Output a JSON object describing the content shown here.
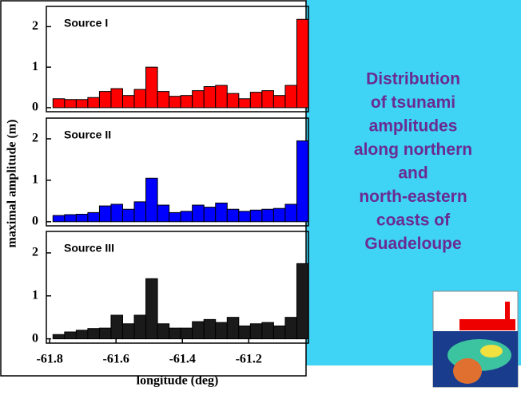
{
  "chart_data": [
    {
      "type": "histogram",
      "title": "Source I",
      "color": "#ff0000",
      "bins": [
        -61.79,
        -61.755,
        -61.72,
        -61.685,
        -61.65,
        -61.615,
        -61.58,
        -61.545,
        -61.51,
        -61.475,
        -61.44,
        -61.405,
        -61.37,
        -61.335,
        -61.3,
        -61.265,
        -61.23,
        -61.195,
        -61.16,
        -61.125,
        -61.09,
        -61.055,
        -61.02
      ],
      "values": [
        0.22,
        0.2,
        0.2,
        0.25,
        0.4,
        0.47,
        0.3,
        0.45,
        1.0,
        0.4,
        0.28,
        0.3,
        0.42,
        0.52,
        0.55,
        0.35,
        0.22,
        0.38,
        0.42,
        0.3,
        0.55,
        2.18
      ],
      "xlim": [
        -61.81,
        -61.02
      ],
      "ylim": [
        -0.1,
        2.5
      ],
      "yticks": [
        0,
        1,
        2
      ]
    },
    {
      "type": "histogram",
      "title": "Source II",
      "color": "#0000ff",
      "ylabel": "maximal amplitude (m)",
      "bins": [
        -61.79,
        -61.755,
        -61.72,
        -61.685,
        -61.65,
        -61.615,
        -61.58,
        -61.545,
        -61.51,
        -61.475,
        -61.44,
        -61.405,
        -61.37,
        -61.335,
        -61.3,
        -61.265,
        -61.23,
        -61.195,
        -61.16,
        -61.125,
        -61.09,
        -61.055,
        -61.02
      ],
      "values": [
        0.15,
        0.17,
        0.18,
        0.22,
        0.38,
        0.42,
        0.3,
        0.48,
        1.05,
        0.4,
        0.22,
        0.25,
        0.4,
        0.35,
        0.45,
        0.3,
        0.25,
        0.28,
        0.3,
        0.32,
        0.42,
        1.95
      ],
      "xlim": [
        -61.81,
        -61.02
      ],
      "ylim": [
        -0.1,
        2.5
      ],
      "yticks": [
        0,
        1,
        2
      ]
    },
    {
      "type": "histogram",
      "title": "Source III",
      "color": "#1a1a1a",
      "xlabel": "longitude (deg)",
      "bins": [
        -61.79,
        -61.755,
        -61.72,
        -61.685,
        -61.65,
        -61.615,
        -61.58,
        -61.545,
        -61.51,
        -61.475,
        -61.44,
        -61.405,
        -61.37,
        -61.335,
        -61.3,
        -61.265,
        -61.23,
        -61.195,
        -61.16,
        -61.125,
        -61.09,
        -61.055,
        -61.02
      ],
      "values": [
        0.1,
        0.16,
        0.2,
        0.24,
        0.25,
        0.55,
        0.35,
        0.55,
        1.4,
        0.35,
        0.25,
        0.25,
        0.4,
        0.45,
        0.38,
        0.5,
        0.3,
        0.35,
        0.38,
        0.3,
        0.5,
        1.75
      ],
      "xlim": [
        -61.81,
        -61.02
      ],
      "ylim": [
        -0.1,
        2.5
      ],
      "yticks": [
        0,
        1,
        2
      ],
      "xticks": [
        -61.8,
        -61.6,
        -61.4,
        -61.2
      ]
    }
  ],
  "text_panel": {
    "lines": [
      "Distribution",
      "of tsunami",
      "amplitudes",
      "along northern",
      "and",
      "north-eastern",
      "coasts of",
      "Guadeloupe"
    ]
  }
}
